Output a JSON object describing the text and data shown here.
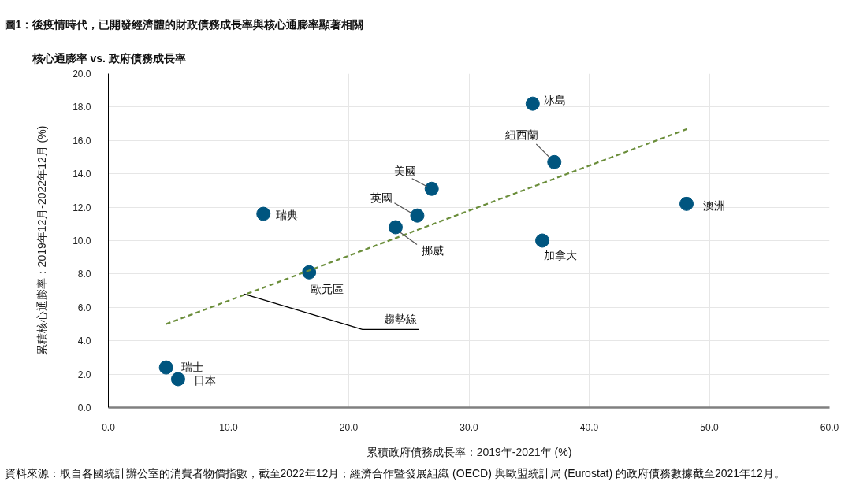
{
  "chart_data": {
    "type": "scatter",
    "title": "圖1：後疫情時代，已開發經濟體的財政債務成長率與核心通膨率顯著相關",
    "subtitle": "核心通膨率 vs. 政府債務成長率",
    "xlabel": "累積政府債務成長率：2019年-2021年 (%)",
    "ylabel": "累積核心通膨率：2019年12月-2022年12月 (%)",
    "series": [
      {
        "color": "#00557f",
        "marker": "circle",
        "x": [
          35.3,
          37.1,
          26.9,
          25.7,
          23.9,
          12.9,
          16.7,
          36.1,
          48.1,
          4.8,
          5.8
        ],
        "values": [
          18.2,
          14.7,
          13.1,
          11.5,
          10.8,
          11.6,
          8.1,
          10.0,
          12.2,
          2.4,
          1.7
        ]
      },
      {
        "type": "line",
        "color": "#6b8e3b",
        "line_style": "dashed",
        "x": [
          4.8,
          48.2
        ],
        "values": [
          5.0,
          16.7
        ]
      }
    ],
    "xlim": [
      0,
      60
    ],
    "ylim": [
      0,
      20
    ],
    "xticks": [
      {
        "value": 0,
        "label": "0.0"
      },
      {
        "value": 10,
        "label": "10.0"
      },
      {
        "value": 20,
        "label": "20.0"
      },
      {
        "value": 30,
        "label": "30.0"
      },
      {
        "value": 40,
        "label": "40.0"
      },
      {
        "value": 50,
        "label": "50.0"
      },
      {
        "value": 60,
        "label": "60.0"
      }
    ],
    "yticks": [
      {
        "value": 0,
        "label": "0.0"
      },
      {
        "value": 2,
        "label": "2.0"
      },
      {
        "value": 4,
        "label": "4.0"
      },
      {
        "value": 6,
        "label": "6.0"
      },
      {
        "value": 8,
        "label": "8.0"
      },
      {
        "value": 10,
        "label": "10.0"
      },
      {
        "value": 12,
        "label": "12.0"
      },
      {
        "value": 14,
        "label": "14.0"
      },
      {
        "value": 16,
        "label": "16.0"
      },
      {
        "value": 18,
        "label": "18.0"
      },
      {
        "value": 20,
        "label": "20.0"
      }
    ],
    "grid": true,
    "annotations": [
      {
        "text": "冰島",
        "x": 35.3,
        "y": 18.2
      },
      {
        "text": "紐西蘭",
        "x": 37.1,
        "y": 14.7
      },
      {
        "text": "美國",
        "x": 26.9,
        "y": 13.1
      },
      {
        "text": "英國",
        "x": 25.7,
        "y": 11.5
      },
      {
        "text": "挪威",
        "x": 23.9,
        "y": 10.8
      },
      {
        "text": "瑞典",
        "x": 12.9,
        "y": 11.6
      },
      {
        "text": "歐元區",
        "x": 16.7,
        "y": 8.1
      },
      {
        "text": "加拿大",
        "x": 36.1,
        "y": 10.0
      },
      {
        "text": "澳洲",
        "x": 48.1,
        "y": 12.2
      },
      {
        "text": "瑞士",
        "x": 4.8,
        "y": 2.4
      },
      {
        "text": "日本",
        "x": 5.8,
        "y": 1.7
      },
      {
        "text": "趨勢線",
        "x": 11.3,
        "y": 6.8
      },
      "資料來源：取自各國統計辦公室的消費者物價指數，截至2022年12月；經濟合作暨發展組織 (OECD) 與歐盟統計局 (Eurostat) 的政府債務數據截至2021年12月。"
    ]
  }
}
